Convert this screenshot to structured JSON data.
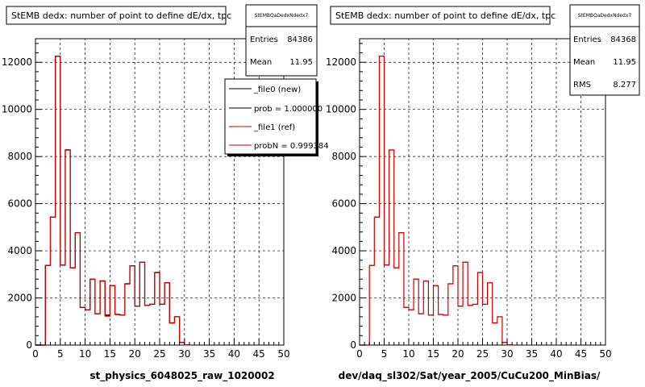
{
  "chart_data": [
    {
      "type": "bar",
      "title": "StEMB dedx: number of point to define dE/dx, tpc",
      "xlabel": "st_physics_6048025_raw_1020002",
      "xlim": [
        0,
        50
      ],
      "ylim": [
        0,
        13000
      ],
      "xticks": [
        "0",
        "5",
        "10",
        "15",
        "20",
        "25",
        "30",
        "35",
        "40",
        "45",
        "50"
      ],
      "yticks": [
        "0",
        "2000",
        "4000",
        "6000",
        "8000",
        "10000",
        "12000"
      ],
      "grid": true,
      "stats": {
        "name": "StEMBQaDedxNdedx7",
        "entries_label": "Entries",
        "entries": "84386",
        "mean_label": "Mean",
        "mean": "11.95"
      },
      "legend": {
        "placement": "top-right",
        "entries": [
          "_file0 (new)",
          "prob = 1.000000",
          "_file1 (ref)",
          "probN = 0.999384"
        ],
        "colors": [
          "#000000",
          "#000000",
          "#cc0000",
          "#cc0000"
        ]
      },
      "bins": {
        "width": 1,
        "start": 0
      },
      "series": [
        {
          "values": [
            0,
            0,
            3380,
            5430,
            12260,
            3400,
            8280,
            3280,
            4770,
            1600,
            1500,
            2800,
            1330,
            2720,
            1270,
            2520,
            1300,
            1270,
            2600,
            3360,
            1650,
            3520,
            1680,
            1730,
            3080,
            1730,
            2640,
            940,
            1200,
            110,
            10
          ]
        },
        {
          "values": [
            0,
            0,
            3380,
            5430,
            12260,
            3400,
            8280,
            3280,
            4770,
            1600,
            1500,
            2800,
            1330,
            2720,
            1230,
            2520,
            1300,
            1270,
            2600,
            3360,
            1650,
            3520,
            1680,
            1730,
            3080,
            1730,
            2640,
            940,
            1200,
            110,
            10
          ]
        }
      ],
      "series_colors": [
        "#000000",
        "#cc0000"
      ]
    },
    {
      "type": "bar",
      "title": "StEMB dedx: number of point to define dE/dx, tpc",
      "xlabel": "dev/daq_sl302/Sat/year_2005/CuCu200_MinBias/",
      "xlim": [
        0,
        50
      ],
      "ylim": [
        0,
        13000
      ],
      "xticks": [
        "0",
        "5",
        "10",
        "15",
        "20",
        "25",
        "30",
        "35",
        "40",
        "45",
        "50"
      ],
      "yticks": [
        "0",
        "2000",
        "4000",
        "6000",
        "8000",
        "10000",
        "12000"
      ],
      "grid": true,
      "stats": {
        "name": "StEMBQaDedxNdedx7",
        "entries_label": "Entries",
        "entries": "84368",
        "mean_label": "Mean",
        "mean": "11.95",
        "rms_label": "RMS",
        "rms": "8.277"
      },
      "bins": {
        "width": 1,
        "start": 0
      },
      "series": [
        {
          "values": [
            0,
            0,
            3380,
            5430,
            12260,
            3400,
            8280,
            3280,
            4770,
            1600,
            1500,
            2800,
            1330,
            2720,
            1270,
            2520,
            1300,
            1270,
            2600,
            3360,
            1650,
            3520,
            1680,
            1730,
            3080,
            1730,
            2640,
            940,
            1200,
            110,
            10
          ]
        }
      ],
      "series_colors": [
        "#cc0000"
      ]
    }
  ]
}
